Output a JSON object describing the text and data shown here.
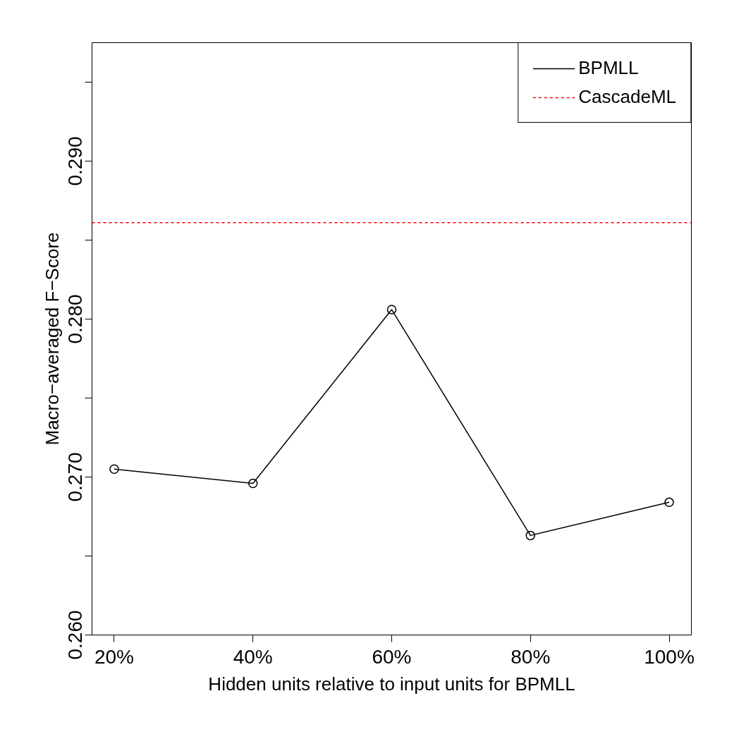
{
  "chart_data": {
    "type": "line",
    "xlabel": "Hidden units relative to input units for BPMLL",
    "ylabel": "Macro−averaged F−Score",
    "categories": [
      "20%",
      "40%",
      "60%",
      "80%",
      "100%"
    ],
    "series": [
      {
        "name": "BPMLL",
        "color": "#000000",
        "values": [
          0.2705,
          0.2696,
          0.2806,
          0.2663,
          0.2684
        ]
      }
    ],
    "ref_lines": [
      {
        "axis": "y",
        "value": 0.2861,
        "label": "CascadeML",
        "color": "#ff0000",
        "line_style": "dashed"
      }
    ],
    "ylim": [
      0.26,
      0.2975
    ],
    "yticks": [
      {
        "value": 0.26,
        "label": "0.260"
      },
      {
        "value": 0.265,
        "label": null
      },
      {
        "value": 0.27,
        "label": "0.270"
      },
      {
        "value": 0.275,
        "label": null
      },
      {
        "value": 0.28,
        "label": "0.280"
      },
      {
        "value": 0.285,
        "label": null
      },
      {
        "value": 0.29,
        "label": "0.290"
      },
      {
        "value": 0.295,
        "label": null
      }
    ],
    "marker": "circle",
    "line_style": "solid",
    "grid": false,
    "legend": "top right"
  }
}
